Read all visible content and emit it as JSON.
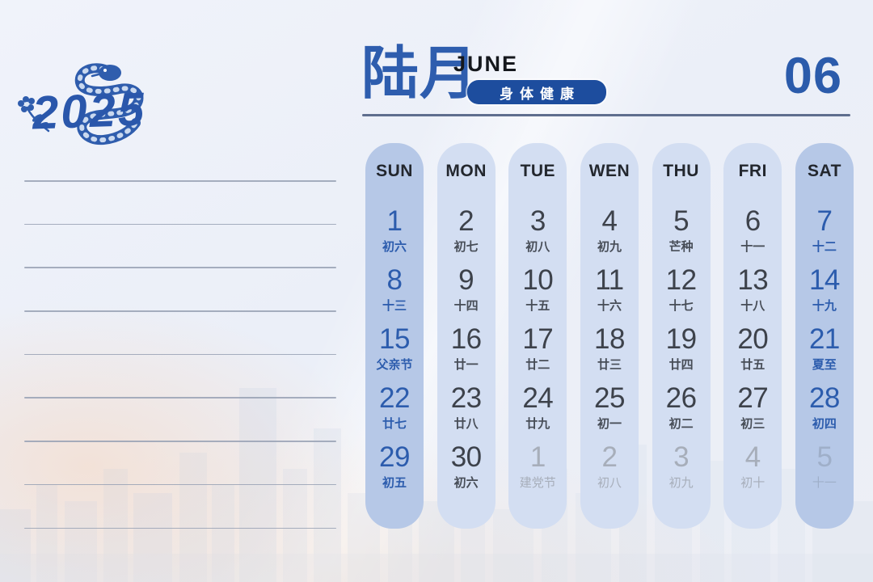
{
  "year": "2025",
  "header": {
    "month_cn": "陆月",
    "month_en": "JUNE",
    "badge": "身体健康",
    "month_num": "06"
  },
  "colors": {
    "accent_blue": "#2e5dae",
    "badge_bg": "#1d4d9e",
    "weekend_pill": "#b6c8e7",
    "weekday_pill": "#d3def2",
    "weekend_text": "#2c5cad",
    "weekday_date": "#3d424b",
    "next_month_text": "#a7aeba",
    "next_month_sat_text": "#9fafc9"
  },
  "notes": {
    "line_count": 9
  },
  "calendar": {
    "columns": [
      {
        "header": "SUN",
        "weekend": true,
        "days": [
          {
            "date": "1",
            "lunar": "初六",
            "tone": "weekend"
          },
          {
            "date": "8",
            "lunar": "十三",
            "tone": "weekend"
          },
          {
            "date": "15",
            "lunar": "父亲节",
            "tone": "weekend"
          },
          {
            "date": "22",
            "lunar": "廿七",
            "tone": "weekend"
          },
          {
            "date": "29",
            "lunar": "初五",
            "tone": "weekend"
          }
        ]
      },
      {
        "header": "MON",
        "weekend": false,
        "days": [
          {
            "date": "2",
            "lunar": "初七",
            "tone": "weekday"
          },
          {
            "date": "9",
            "lunar": "十四",
            "tone": "weekday"
          },
          {
            "date": "16",
            "lunar": "廿一",
            "tone": "weekday"
          },
          {
            "date": "23",
            "lunar": "廿八",
            "tone": "weekday"
          },
          {
            "date": "30",
            "lunar": "初六",
            "tone": "weekday"
          }
        ]
      },
      {
        "header": "TUE",
        "weekend": false,
        "days": [
          {
            "date": "3",
            "lunar": "初八",
            "tone": "weekday"
          },
          {
            "date": "10",
            "lunar": "十五",
            "tone": "weekday"
          },
          {
            "date": "17",
            "lunar": "廿二",
            "tone": "weekday"
          },
          {
            "date": "24",
            "lunar": "廿九",
            "tone": "weekday"
          },
          {
            "date": "1",
            "lunar": "建党节",
            "tone": "next"
          }
        ]
      },
      {
        "header": "WEN",
        "weekend": false,
        "days": [
          {
            "date": "4",
            "lunar": "初九",
            "tone": "weekday"
          },
          {
            "date": "11",
            "lunar": "十六",
            "tone": "weekday"
          },
          {
            "date": "18",
            "lunar": "廿三",
            "tone": "weekday"
          },
          {
            "date": "25",
            "lunar": "初一",
            "tone": "weekday"
          },
          {
            "date": "2",
            "lunar": "初八",
            "tone": "next"
          }
        ]
      },
      {
        "header": "THU",
        "weekend": false,
        "days": [
          {
            "date": "5",
            "lunar": "芒种",
            "tone": "weekday"
          },
          {
            "date": "12",
            "lunar": "十七",
            "tone": "weekday"
          },
          {
            "date": "19",
            "lunar": "廿四",
            "tone": "weekday"
          },
          {
            "date": "26",
            "lunar": "初二",
            "tone": "weekday"
          },
          {
            "date": "3",
            "lunar": "初九",
            "tone": "next"
          }
        ]
      },
      {
        "header": "FRI",
        "weekend": false,
        "days": [
          {
            "date": "6",
            "lunar": "十一",
            "tone": "weekday"
          },
          {
            "date": "13",
            "lunar": "十八",
            "tone": "weekday"
          },
          {
            "date": "20",
            "lunar": "廿五",
            "tone": "weekday"
          },
          {
            "date": "27",
            "lunar": "初三",
            "tone": "weekday"
          },
          {
            "date": "4",
            "lunar": "初十",
            "tone": "next"
          }
        ]
      },
      {
        "header": "SAT",
        "weekend": true,
        "days": [
          {
            "date": "7",
            "lunar": "十二",
            "tone": "weekend"
          },
          {
            "date": "14",
            "lunar": "十九",
            "tone": "weekend"
          },
          {
            "date": "21",
            "lunar": "夏至",
            "tone": "weekend"
          },
          {
            "date": "28",
            "lunar": "初四",
            "tone": "weekend"
          },
          {
            "date": "5",
            "lunar": "十一",
            "tone": "next-sat"
          }
        ]
      }
    ]
  }
}
